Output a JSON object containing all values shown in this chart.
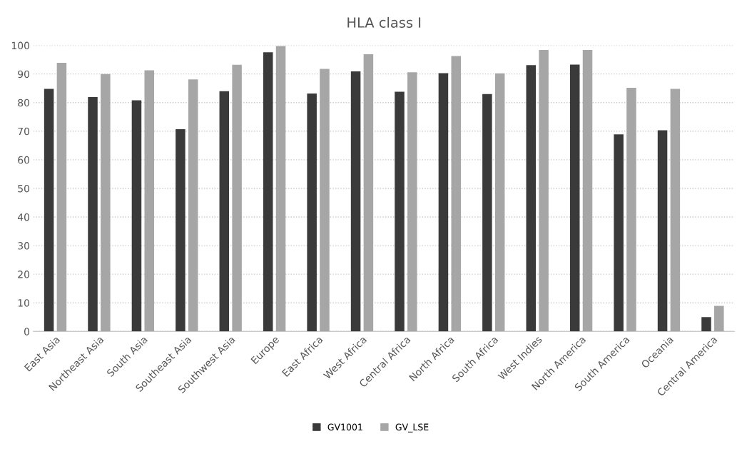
{
  "chart_data": {
    "type": "bar",
    "title": "HLA class I",
    "categories": [
      "East Asia",
      "Northeast Asia",
      "South Asia",
      "Southeast Asia",
      "Southwest Asia",
      "Europe",
      "East Africa",
      "West Africa",
      "Central Africa",
      "North Africa",
      "South Africa",
      "West Indies",
      "North America",
      "South America",
      "Oceania",
      "Central America"
    ],
    "series": [
      {
        "name": "GV1001",
        "color": "#3a3a3a",
        "values": [
          84.8,
          81.9,
          80.8,
          70.7,
          84.0,
          97.6,
          83.2,
          90.9,
          83.8,
          90.3,
          83.0,
          93.1,
          93.3,
          68.9,
          70.3,
          5.0
        ]
      },
      {
        "name": "GV_LSE",
        "color": "#a6a6a6",
        "values": [
          93.9,
          90.0,
          91.3,
          88.1,
          93.2,
          99.8,
          91.8,
          96.9,
          90.6,
          96.3,
          90.2,
          98.4,
          98.4,
          85.2,
          84.8,
          8.9
        ]
      }
    ],
    "ylim": [
      0,
      100
    ],
    "yticks": [
      0,
      10,
      20,
      30,
      40,
      50,
      60,
      70,
      80,
      90,
      100
    ],
    "grid": "y",
    "legend": "bottom"
  }
}
